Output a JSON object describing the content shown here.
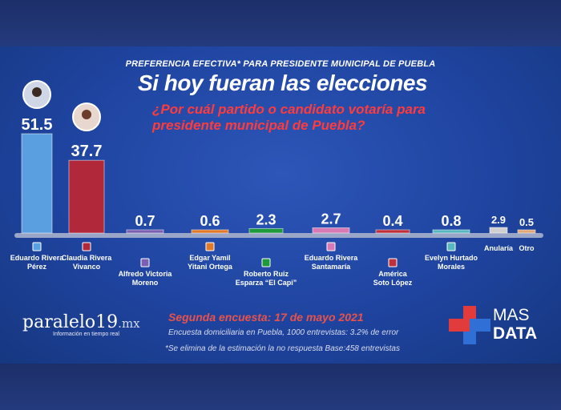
{
  "header": {
    "small": "PREFERENCIA EFECTIVA* PARA PRESIDENTE MUNICIPAL DE PUEBLA",
    "big": "Si hoy fueran las elecciones",
    "question": "¿Por cuál partido o candidato votaría para presidente municipal de Puebla?"
  },
  "chart_data": {
    "type": "bar",
    "categories": [
      "Eduardo Rivera Pérez",
      "Claudia Rivera Vivanco",
      "Alfredo Victoria Moreno",
      "Edgar Yamil Yitani Ortega",
      "Roberto Ruiz Esparza “El Capi”",
      "Eduardo Rivera Santamaría",
      "América Soto López",
      "Evelyn Hurtado Morales",
      "Anularía",
      "Otro"
    ],
    "label_lines": [
      [
        "Eduardo Rivera",
        "Pérez"
      ],
      [
        "Claudia Rivera",
        "Vivanco"
      ],
      [
        "Alfredo Victoria",
        "Moreno"
      ],
      [
        "Edgar Yamil",
        "Yitani Ortega"
      ],
      [
        "Roberto Ruiz",
        "Esparza “El Capi”"
      ],
      [
        "Eduardo Rivera",
        "Santamaría"
      ],
      [
        "América",
        "Soto López"
      ],
      [
        "Evelyn Hurtado",
        "Morales"
      ],
      [
        "Anularía"
      ],
      [
        "Otro"
      ]
    ],
    "values": [
      51.5,
      37.7,
      0.7,
      0.6,
      2.3,
      2.7,
      0.4,
      0.8,
      2.9,
      0.5
    ],
    "value_labels": [
      "51.5",
      "37.7",
      "0.7",
      "0.6",
      "2.3",
      "2.7",
      "0.4",
      "0.8",
      "2.9",
      "0.5"
    ],
    "colors": [
      "#5aa0e0",
      "#b0283a",
      "#7b5fb0",
      "#e07a2a",
      "#1f9a3a",
      "#d77ab5",
      "#c0303a",
      "#58b8c0",
      "#d0d0d0",
      "#e0a878"
    ],
    "ylim": [
      0,
      55
    ]
  },
  "footer": {
    "date": "Segunda encuesta: 17 de mayo 2021",
    "method": "Encuesta domiciliaria en Puebla, 1000 entrevistas: 3.2% de error",
    "note": "*Se elimina de la estimación la no respuesta Base:458 entrevistas"
  },
  "brand_left": {
    "name": "paralelo19",
    "suffix": ".mx",
    "tagline": "Información en tiempo real"
  },
  "brand_right": {
    "line1": "MAS",
    "line2": "DATA"
  }
}
